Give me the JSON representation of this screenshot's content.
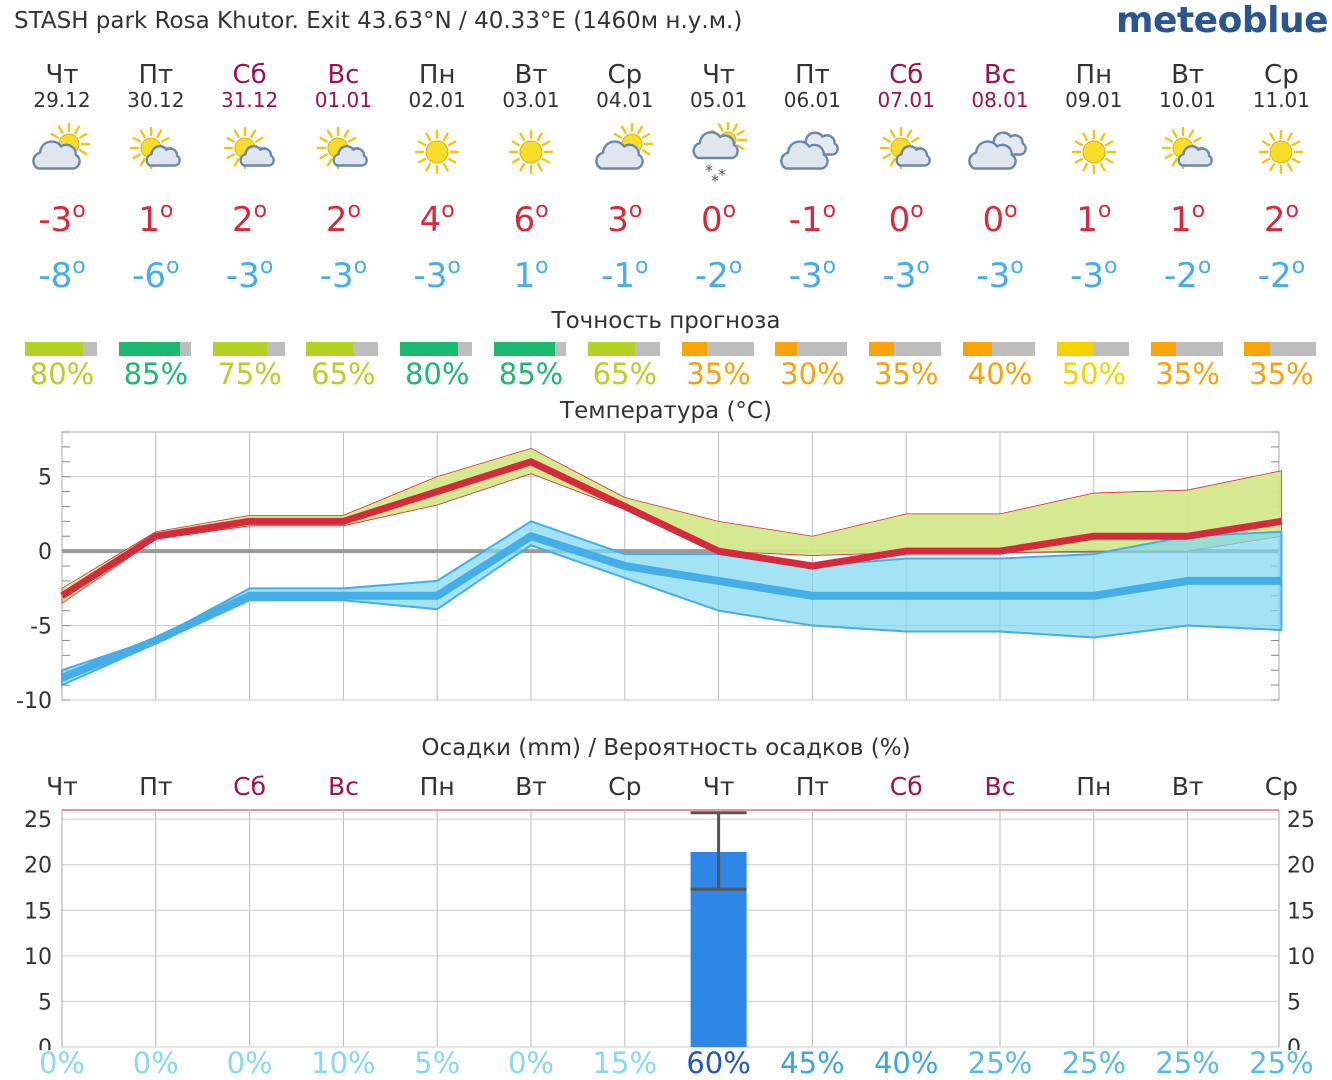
{
  "header": {
    "title": "STASH park Rosa Khutor. Exit  43.63°N / 40.33°E (1460м н.у.м.)",
    "brand": "meteoblue"
  },
  "days": [
    {
      "name": "Чт",
      "date": "29.12",
      "weekend": false,
      "icon": "sun-cloud-icon",
      "tmax": "-3",
      "tmin": "-8"
    },
    {
      "name": "Пт",
      "date": "30.12",
      "weekend": false,
      "icon": "sun-small-cloud-icon",
      "tmax": "1",
      "tmin": "-6"
    },
    {
      "name": "Сб",
      "date": "31.12",
      "weekend": true,
      "icon": "sun-small-cloud-icon",
      "tmax": "2",
      "tmin": "-3"
    },
    {
      "name": "Вс",
      "date": "01.01",
      "weekend": true,
      "icon": "sun-small-cloud-icon",
      "tmax": "2",
      "tmin": "-3"
    },
    {
      "name": "Пн",
      "date": "02.01",
      "weekend": false,
      "icon": "sun-icon",
      "tmax": "4",
      "tmin": "-3"
    },
    {
      "name": "Вт",
      "date": "03.01",
      "weekend": false,
      "icon": "sun-icon",
      "tmax": "6",
      "tmin": "1"
    },
    {
      "name": "Ср",
      "date": "04.01",
      "weekend": false,
      "icon": "sun-cloud-icon",
      "tmax": "3",
      "tmin": "-1"
    },
    {
      "name": "Чт",
      "date": "05.01",
      "weekend": false,
      "icon": "sun-cloud-snow-icon",
      "tmax": "0",
      "tmin": "-2"
    },
    {
      "name": "Пт",
      "date": "06.01",
      "weekend": false,
      "icon": "clouds-icon",
      "tmax": "-1",
      "tmin": "-3"
    },
    {
      "name": "Сб",
      "date": "07.01",
      "weekend": true,
      "icon": "sun-small-cloud-icon",
      "tmax": "0",
      "tmin": "-3"
    },
    {
      "name": "Вс",
      "date": "08.01",
      "weekend": true,
      "icon": "clouds-icon",
      "tmax": "0",
      "tmin": "-3"
    },
    {
      "name": "Пн",
      "date": "09.01",
      "weekend": false,
      "icon": "sun-icon",
      "tmax": "1",
      "tmin": "-3"
    },
    {
      "name": "Вт",
      "date": "10.01",
      "weekend": false,
      "icon": "sun-small-cloud-icon",
      "tmax": "1",
      "tmin": "-2"
    },
    {
      "name": "Ср",
      "date": "11.01",
      "weekend": false,
      "icon": "sun-icon",
      "tmax": "2",
      "tmin": "-2"
    }
  ],
  "accuracy": {
    "title": "Точность прогноза",
    "values": [
      {
        "label": "80%",
        "fraction": 0.8,
        "color": "#b4d223"
      },
      {
        "label": "85%",
        "fraction": 0.85,
        "color": "#1cb870"
      },
      {
        "label": "75%",
        "fraction": 0.75,
        "color": "#b4d223"
      },
      {
        "label": "65%",
        "fraction": 0.65,
        "color": "#b4d223"
      },
      {
        "label": "80%",
        "fraction": 0.8,
        "color": "#1cb870"
      },
      {
        "label": "85%",
        "fraction": 0.85,
        "color": "#1cb870"
      },
      {
        "label": "65%",
        "fraction": 0.65,
        "color": "#b4d223"
      },
      {
        "label": "35%",
        "fraction": 0.35,
        "color": "#f7a30a"
      },
      {
        "label": "30%",
        "fraction": 0.3,
        "color": "#f7a30a"
      },
      {
        "label": "35%",
        "fraction": 0.35,
        "color": "#f7a30a"
      },
      {
        "label": "40%",
        "fraction": 0.4,
        "color": "#f7a30a"
      },
      {
        "label": "50%",
        "fraction": 0.5,
        "color": "#f4d300"
      },
      {
        "label": "35%",
        "fraction": 0.35,
        "color": "#f7a30a"
      },
      {
        "label": "35%",
        "fraction": 0.35,
        "color": "#f7a30a"
      }
    ]
  },
  "temperature_title": "Температура (°C)",
  "precip_title": "Осадки (mm) / Вероятность осадков (%)",
  "precip_prob": [
    {
      "label": "0%",
      "color": "#86d9ee"
    },
    {
      "label": "0%",
      "color": "#86d9ee"
    },
    {
      "label": "0%",
      "color": "#86d9ee"
    },
    {
      "label": "10%",
      "color": "#86d9ee"
    },
    {
      "label": "5%",
      "color": "#86d9ee"
    },
    {
      "label": "0%",
      "color": "#86d9ee"
    },
    {
      "label": "15%",
      "color": "#86d9ee"
    },
    {
      "label": "60%",
      "color": "#1f57c3"
    },
    {
      "label": "45%",
      "color": "#3aa6e6"
    },
    {
      "label": "40%",
      "color": "#3aa6e6"
    },
    {
      "label": "25%",
      "color": "#55bbec"
    },
    {
      "label": "25%",
      "color": "#55bbec"
    },
    {
      "label": "25%",
      "color": "#55bbec"
    },
    {
      "label": "25%",
      "color": "#55bbec"
    }
  ],
  "chart_data": [
    {
      "type": "line",
      "title": "Температура (°C)",
      "x": [
        "29.12",
        "30.12",
        "31.12",
        "01.01",
        "02.01",
        "03.01",
        "04.01",
        "05.01",
        "06.01",
        "07.01",
        "08.01",
        "09.01",
        "10.01",
        "11.01"
      ],
      "ylim": [
        -10,
        8
      ],
      "yticks": [
        -10,
        -5,
        0,
        5
      ],
      "grid": true,
      "series": [
        {
          "role": "max",
          "values": [
            -3,
            1,
            2,
            2,
            4,
            6,
            3,
            0,
            -1,
            0,
            0,
            1,
            1,
            2
          ],
          "range_low": [
            -3.5,
            0.8,
            1.7,
            1.7,
            3.1,
            5.2,
            2.8,
            0,
            -0.3,
            -0.1,
            -0.1,
            0,
            0,
            1
          ],
          "range_high": [
            -2.5,
            1.3,
            2.4,
            2.4,
            5,
            6.9,
            3.6,
            2,
            1,
            2.5,
            2.5,
            3.9,
            4.1,
            5.4
          ],
          "color": "#d62a3c"
        },
        {
          "role": "min",
          "values": [
            -8.5,
            -6,
            -3,
            -3,
            -3,
            1,
            -1,
            -2,
            -3,
            -3,
            -3,
            -3,
            -2,
            -2
          ],
          "range_low": [
            -9,
            -6.2,
            -3.3,
            -3.3,
            -3.9,
            0.4,
            -1.8,
            -4,
            -5,
            -5.4,
            -5.4,
            -5.8,
            -5,
            -5.3
          ],
          "range_high": [
            -8,
            -5.9,
            -2.5,
            -2.5,
            -2,
            2,
            -0.2,
            -0.2,
            -1,
            -0.5,
            -0.5,
            -0.2,
            1,
            1.3
          ],
          "color": "#44aee8"
        }
      ]
    },
    {
      "type": "bar",
      "title": "Осадки (mm) / Вероятность осадков (%)",
      "categories": [
        "Чт",
        "Пт",
        "Сб",
        "Вс",
        "Пн",
        "Вт",
        "Ср",
        "Чт",
        "Пт",
        "Сб",
        "Вс",
        "Пн",
        "Вт",
        "Ср"
      ],
      "values": [
        0,
        0,
        0,
        0,
        0,
        0,
        0,
        21.4,
        0,
        0,
        0,
        0,
        0,
        0
      ],
      "error_low": [
        0,
        0,
        0,
        0,
        0,
        0,
        0,
        17.3,
        0,
        0,
        0,
        0,
        0,
        0
      ],
      "error_high": [
        0,
        0,
        0,
        0,
        0,
        0,
        0,
        25.7,
        0,
        0,
        0,
        0,
        0,
        0
      ],
      "ylim": [
        0,
        26
      ],
      "yticks": [
        0,
        5,
        10,
        15,
        20,
        25
      ],
      "bar_color": "#2e86e6"
    }
  ]
}
